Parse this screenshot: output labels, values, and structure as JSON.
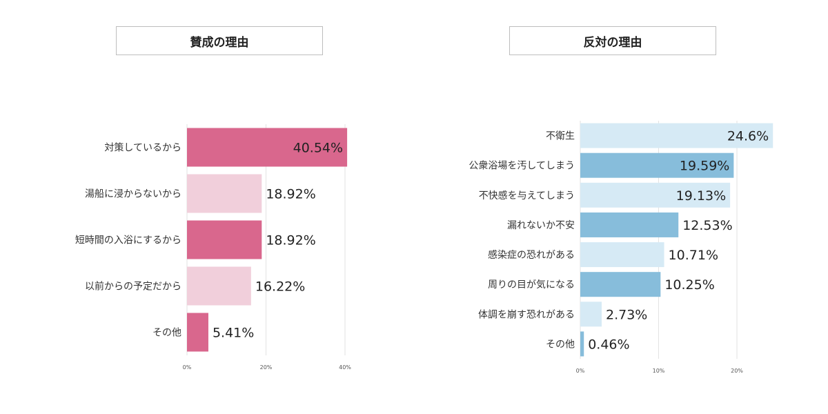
{
  "chart_data": [
    {
      "type": "bar",
      "orientation": "horizontal",
      "title": "賛成の理由",
      "categories": [
        "対策しているから",
        "湯船に浸からないから",
        "短時間の入浴にするから",
        "以前からの予定だから",
        "その他"
      ],
      "values": [
        40.54,
        18.92,
        18.92,
        16.22,
        5.41
      ],
      "value_labels": [
        "40.54%",
        "18.92%",
        "18.92%",
        "16.22%",
        "5.41%"
      ],
      "bar_colors": [
        "#d9678d",
        "#f1cfdb",
        "#d9678d",
        "#f1cfdb",
        "#d9678d"
      ],
      "xlim": [
        0,
        40
      ],
      "xticks": [
        "0%",
        "20%",
        "40%"
      ],
      "grid": true
    },
    {
      "type": "bar",
      "orientation": "horizontal",
      "title": "反対の理由",
      "categories": [
        "不衛生",
        "公衆浴場を汚してしまう",
        "不快感を与えてしまう",
        "漏れないか不安",
        "感染症の恐れがある",
        "周りの目が気になる",
        "体調を崩す恐れがある",
        "その他"
      ],
      "values": [
        24.6,
        19.59,
        19.13,
        12.53,
        10.71,
        10.25,
        2.73,
        0.46
      ],
      "value_labels": [
        "24.6%",
        "19.59%",
        "19.13%",
        "12.53%",
        "10.71%",
        "10.25%",
        "2.73%",
        "0.46%"
      ],
      "bar_colors": [
        "#d6eaf5",
        "#87bddb",
        "#d6eaf5",
        "#87bddb",
        "#d6eaf5",
        "#87bddb",
        "#d6eaf5",
        "#87bddb"
      ],
      "xlim": [
        0,
        20
      ],
      "xticks": [
        "0%",
        "10%",
        "20%"
      ],
      "grid": true
    }
  ]
}
